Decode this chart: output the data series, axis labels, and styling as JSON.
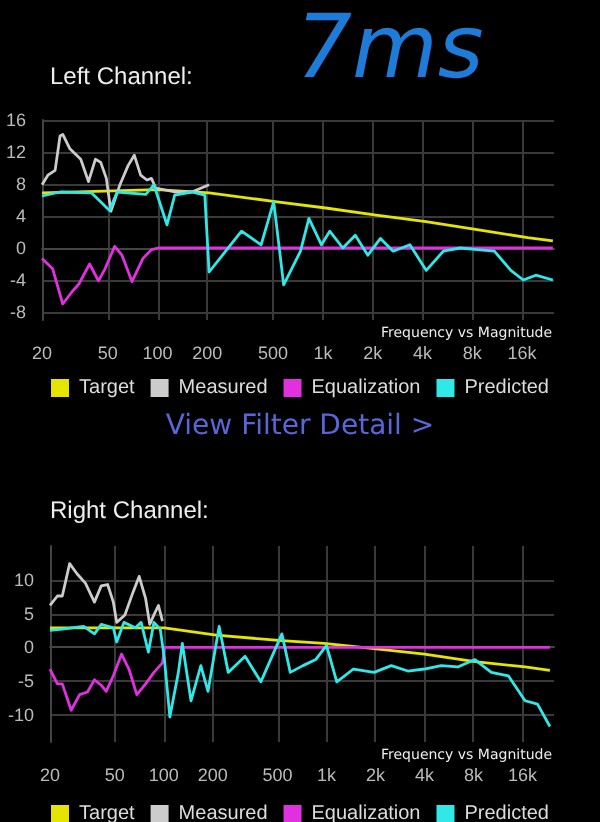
{
  "chart_data": [
    {
      "type": "line",
      "title": "Left Channel:",
      "annotations": [
        "Frequency vs Magnitude",
        "7ms",
        "View Filter Detail >"
      ],
      "xlim": [
        20,
        25000
      ],
      "xticks": [
        20,
        50,
        100,
        200,
        500,
        {
          "value": 1000,
          "label": "1k"
        },
        {
          "value": 2000,
          "label": "2k"
        },
        {
          "value": 4000,
          "label": "4k"
        },
        {
          "value": 8000,
          "label": "8k"
        },
        {
          "value": 16000,
          "label": "16k"
        }
      ],
      "log": "x",
      "ylim": [
        -9,
        16
      ],
      "yticks": [
        16,
        12,
        8,
        4,
        0,
        -4,
        -8
      ],
      "grid": true,
      "legend": "bottom",
      "marker": "none",
      "series": [
        {
          "name": "Target",
          "color": "#e5e500",
          "x": [
            20,
            100,
            205,
            514,
            1040,
            2100,
            4200,
            8560,
            17300,
            24600
          ],
          "values": [
            6.9,
            7.3,
            6.9,
            5.8,
            5.0,
            4.1,
            3.3,
            2.3,
            1.3,
            0.9
          ]
        },
        {
          "name": "Measured",
          "color": "#cccccc",
          "x": [
            20,
            21.7,
            24,
            25.7,
            26.7,
            29.5,
            34.3,
            38.2,
            42.1,
            45.3,
            49,
            52.2,
            59.2,
            66.3,
            72.3,
            79,
            86.2,
            91.8,
            97.5,
            127,
            161,
            205
          ],
          "values": [
            7.9,
            9.1,
            9.7,
            14.0,
            14.2,
            12.4,
            11.1,
            8.3,
            11.1,
            10.7,
            8.7,
            4.6,
            7.9,
            10.3,
            11.6,
            9.1,
            8.5,
            8.7,
            7.5,
            7.0,
            7.0,
            7.9
          ]
        },
        {
          "name": "Equalization",
          "color": "#e030e0",
          "x": [
            20,
            23.2,
            26.7,
            30.3,
            33.4,
            38.8,
            43.9,
            48.1,
            55,
            60.9,
            70,
            81.6,
            91.8,
            101,
            24600
          ],
          "values": [
            -1.3,
            -2.6,
            -7.0,
            -5.5,
            -4.5,
            -2.0,
            -4.1,
            -2.6,
            0.2,
            -0.9,
            -4.2,
            -1.3,
            -0.2,
            0,
            0
          ]
        },
        {
          "name": "Predicted",
          "color": "#30e8e8",
          "x": [
            20,
            25.7,
            39.8,
            51.2,
            56.9,
            84.9,
            95,
            114,
            127,
            161,
            193,
            205,
            258,
            322,
            423,
            504,
            579,
            732,
            823,
            980,
            1100,
            1320,
            1570,
            1870,
            2230,
            2660,
            3360,
            4220,
            5350,
            6770,
            8570,
            10900,
            13700,
            16300,
            19400,
            24600
          ],
          "values": [
            6.5,
            7.0,
            6.9,
            4.7,
            7.0,
            6.7,
            7.9,
            2.9,
            6.6,
            7.0,
            6.6,
            -3.0,
            -0.4,
            2.1,
            0.4,
            5.8,
            -4.6,
            -0.4,
            3.7,
            0.4,
            2.1,
            0.0,
            1.6,
            -0.9,
            1.2,
            -0.4,
            0.4,
            -2.8,
            -0.4,
            0.0,
            -0.2,
            -0.4,
            -2.8,
            -4.0,
            -3.4,
            -4.0
          ]
        }
      ]
    },
    {
      "type": "line",
      "title": "Right Channel:",
      "annotations": [
        "Frequency vs Magnitude"
      ],
      "xlim": [
        20,
        25000
      ],
      "xticks": [
        20,
        50,
        100,
        200,
        500,
        {
          "value": 1000,
          "label": "1k"
        },
        {
          "value": 2000,
          "label": "2k"
        },
        {
          "value": 4000,
          "label": "4k"
        },
        {
          "value": 8000,
          "label": "8k"
        },
        {
          "value": 16000,
          "label": "16k"
        }
      ],
      "log": "x",
      "ylim": [
        -14,
        15
      ],
      "yticks": [
        10,
        5,
        0,
        -5,
        -10
      ],
      "grid": true,
      "legend": "bottom",
      "marker": "none",
      "series": [
        {
          "name": "Target",
          "color": "#e5e500",
          "x": [
            20,
            101,
            210,
            532,
            965,
            1960,
            4000,
            8160,
            16600,
            23600
          ],
          "values": [
            2.9,
            2.9,
            1.8,
            1.0,
            0.6,
            -0.2,
            -1.0,
            -2.1,
            -2.9,
            -3.4
          ]
        },
        {
          "name": "Measured",
          "color": "#cccccc",
          "x": [
            20,
            22.2,
            23.8,
            26.4,
            29.3,
            33,
            37.5,
            41.3,
            45.2,
            49,
            51.4,
            57.7,
            64.6,
            70.6,
            77.4,
            82,
            87,
            92.7,
            98.2
          ],
          "values": [
            6.2,
            7.6,
            7.6,
            12.4,
            10.9,
            9.5,
            6.7,
            9.1,
            9.3,
            6.7,
            3.7,
            4.8,
            8.1,
            10.5,
            7.2,
            3.4,
            4.8,
            6.2,
            3.9
          ]
        },
        {
          "name": "Equalization",
          "color": "#e030e0",
          "x": [
            20,
            22.2,
            23.8,
            27,
            30.4,
            34,
            37.5,
            41.3,
            44.3,
            49,
            55,
            61.1,
            68.3,
            77.4,
            87,
            98.2,
            101,
            23600
          ],
          "values": [
            -3.2,
            -5.4,
            -5.4,
            -9.3,
            -7.0,
            -6.6,
            -4.8,
            -5.6,
            -6.5,
            -4.2,
            -1.0,
            -3.2,
            -7.0,
            -5.4,
            -3.7,
            -2.3,
            0,
            0
          ]
        },
        {
          "name": "Predicted",
          "color": "#30e8e8",
          "x": [
            20,
            23.8,
            32.2,
            37.5,
            41.3,
            49,
            51.4,
            56.9,
            66.9,
            72.6,
            80.5,
            87,
            95.2,
            101,
            109,
            123,
            130,
            147,
            169,
            187,
            219,
            249,
            316,
            395,
            532,
            599,
            717,
            859,
            1000,
            1157,
            1464,
            1960,
            2500,
            3160,
            4000,
            5060,
            6410,
            8160,
            10300,
            13100,
            16600,
            19800,
            23600
          ],
          "values": [
            2.5,
            2.7,
            3.1,
            2.0,
            3.4,
            2.9,
            0.8,
            3.7,
            2.9,
            3.7,
            -0.7,
            3.7,
            2.7,
            -1.8,
            -10.3,
            -3.7,
            0.6,
            -7.9,
            -2.7,
            -6.5,
            3.1,
            -3.7,
            -1.3,
            -5.1,
            2.0,
            -3.7,
            -2.7,
            -1.8,
            0.3,
            -5.1,
            -3.2,
            -3.7,
            -2.7,
            -3.5,
            -3.2,
            -2.7,
            -2.9,
            -1.8,
            -3.7,
            -4.2,
            -7.9,
            -8.4,
            -11.7
          ]
        }
      ]
    }
  ]
}
